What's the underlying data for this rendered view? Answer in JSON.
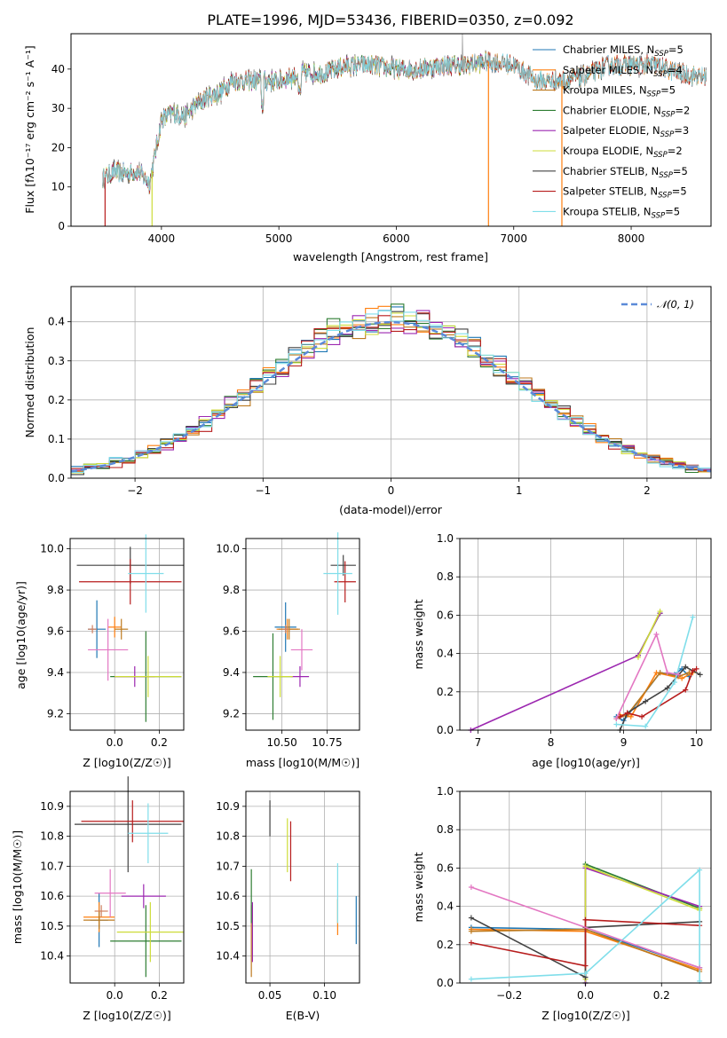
{
  "page": {
    "title": "PLATE=1996, MJD=53436, FIBERID=0350, z=0.092"
  },
  "models": [
    {
      "name": "Chabrier MILES, N",
      "sub": "SSP",
      "n": "=5",
      "color": "#1f77b4"
    },
    {
      "name": "Salpeter MILES, N",
      "sub": "SSP",
      "n": "=4",
      "color": "#ff7f0e"
    },
    {
      "name": "Kroupa MILES, N",
      "sub": "SSP",
      "n": "=5",
      "color": "#bd7a1f"
    },
    {
      "name": "Chabrier ELODIE, N",
      "sub": "SSP",
      "n": "=2",
      "color": "#2e7d32"
    },
    {
      "name": "Salpeter ELODIE, N",
      "sub": "SSP",
      "n": "=3",
      "color": "#9c27b0"
    },
    {
      "name": "Kroupa ELODIE, N",
      "sub": "SSP",
      "n": "=2",
      "color": "#cddc39"
    },
    {
      "name": "Chabrier STELIB, N",
      "sub": "SSP",
      "n": "=5",
      "color": "#424242"
    },
    {
      "name": "Salpeter STELIB, N",
      "sub": "SSP",
      "n": "=5",
      "color": "#b71c1c"
    },
    {
      "name": "Kroupa STELIB, N",
      "sub": "SSP",
      "n": "=5",
      "color": "#80deea"
    }
  ],
  "chart_data": [
    {
      "id": "spectrum",
      "type": "line",
      "xlabel": "wavelength [Angstrom, rest frame]",
      "ylabel": "Flux [fλ10⁻¹⁷ erg cm⁻² s⁻¹ A⁻¹]",
      "xlim": [
        3230,
        8680
      ],
      "ylim": [
        0,
        49
      ],
      "xticks": [
        4000,
        5000,
        6000,
        7000,
        8000
      ],
      "yticks": [
        0,
        10,
        20,
        30,
        40
      ],
      "grid": false,
      "legend": "top-right",
      "continuum": {
        "x": [
          3500,
          3600,
          3700,
          3800,
          3900,
          3950,
          4000,
          4100,
          4200,
          4300,
          4400,
          4500,
          4600,
          4800,
          5000,
          5200,
          5400,
          5600,
          5800,
          6000,
          6200,
          6400,
          6600,
          6800,
          7000,
          7200,
          7400,
          7600,
          7800,
          8000,
          8200,
          8400,
          8600
        ],
        "y": [
          12,
          14,
          13.5,
          14,
          11,
          19,
          27,
          29,
          28,
          31,
          33,
          34,
          37,
          37,
          37,
          39,
          39,
          41,
          41,
          40,
          40,
          41,
          41,
          42,
          41,
          37,
          37,
          38,
          41,
          41,
          41,
          39,
          38
        ]
      }
    },
    {
      "id": "residuals",
      "type": "line",
      "xlabel": "(data-model)/error",
      "ylabel": "Normed distribution",
      "xlim": [
        -2.5,
        2.5
      ],
      "ylim": [
        0,
        0.49
      ],
      "xticks": [
        -2,
        -1,
        0,
        1,
        2
      ],
      "yticks": [
        0.0,
        0.1,
        0.2,
        0.3,
        0.4
      ],
      "grid": true,
      "legend": "top-right",
      "legend_label": "𝒩(0, 1)"
    },
    {
      "id": "age-vs-z",
      "type": "scatter",
      "xlabel": "Z [log10(Z/Z☉)]",
      "ylabel": "age  [log10(age/yr)]",
      "xlim": [
        -0.2,
        0.31
      ],
      "ylim": [
        9.12,
        10.05
      ],
      "xticks": [
        0.0,
        0.2
      ],
      "yticks": [
        9.2,
        9.4,
        9.6,
        9.8,
        10.0
      ],
      "grid": true,
      "points": [
        {
          "x": -0.08,
          "xerr": 0.04,
          "y": 9.61,
          "yerr": 0.14
        },
        {
          "x": 0.0,
          "xerr": 0.03,
          "y": 9.62,
          "yerr": 0.05
        },
        {
          "x": 0.03,
          "xerr": 0.03,
          "y": 9.61,
          "yerr": 0.05
        },
        {
          "x": 0.14,
          "xerr": 0.16,
          "y": 9.38,
          "yerr": 0.22
        },
        {
          "x": 0.09,
          "xerr": 0.09,
          "y": 9.38,
          "yerr": 0.05
        },
        {
          "x": 0.15,
          "xerr": 0.15,
          "y": 9.38,
          "yerr": 0.1
        },
        {
          "x": 0.07,
          "xerr": 0.24,
          "y": 9.92,
          "yerr": 0.09
        },
        {
          "x": 0.07,
          "xerr": 0.23,
          "y": 9.84,
          "yerr": 0.11
        },
        {
          "x": 0.14,
          "xerr": 0.08,
          "y": 9.88,
          "yerr": 0.19
        },
        {
          "x": -0.03,
          "xerr": 0.09,
          "y": 9.51,
          "yerr": 0.15
        },
        {
          "x": -0.1,
          "xerr": 0.02,
          "y": 9.61,
          "yerr": 0.02
        }
      ]
    },
    {
      "id": "age-vs-mass",
      "type": "scatter",
      "xlabel": "mass [log10(M/M☉)]",
      "ylabel": "",
      "xlim": [
        10.3,
        10.93
      ],
      "ylim": [
        9.12,
        10.05
      ],
      "xticks": [
        10.5,
        10.75
      ],
      "yticks": [
        9.2,
        9.4,
        9.6,
        9.8,
        10.0
      ],
      "grid": true,
      "points": [
        {
          "x": 10.52,
          "xerr": 0.06,
          "y": 9.62,
          "yerr": 0.12
        },
        {
          "x": 10.53,
          "xerr": 0.06,
          "y": 9.61,
          "yerr": 0.05
        },
        {
          "x": 10.54,
          "xerr": 0.06,
          "y": 9.61,
          "yerr": 0.05
        },
        {
          "x": 10.45,
          "xerr": 0.11,
          "y": 9.38,
          "yerr": 0.21
        },
        {
          "x": 10.6,
          "xerr": 0.05,
          "y": 9.38,
          "yerr": 0.05
        },
        {
          "x": 10.49,
          "xerr": 0.07,
          "y": 9.38,
          "yerr": 0.1
        },
        {
          "x": 10.84,
          "xerr": 0.07,
          "y": 9.92,
          "yerr": 0.05
        },
        {
          "x": 10.85,
          "xerr": 0.06,
          "y": 9.84,
          "yerr": 0.1
        },
        {
          "x": 10.81,
          "xerr": 0.08,
          "y": 9.88,
          "yerr": 0.2
        },
        {
          "x": 10.61,
          "xerr": 0.06,
          "y": 9.51,
          "yerr": 0.1
        },
        {
          "x": 10.52,
          "xerr": 0.02,
          "y": 9.61,
          "yerr": 0.02
        }
      ]
    },
    {
      "id": "weight-vs-age",
      "type": "line",
      "xlabel": "age  [log10(age/yr)]",
      "ylabel": "mass weight",
      "xlim": [
        6.75,
        10.2
      ],
      "ylim": [
        0,
        1.0
      ],
      "xticks": [
        7,
        8,
        9,
        10
      ],
      "yticks": [
        0.0,
        0.2,
        0.4,
        0.6,
        0.8,
        1.0
      ],
      "grid": true,
      "series": [
        {
          "x": [
            8.9,
            9.0,
            9.5,
            9.7,
            9.8,
            9.9
          ],
          "y": [
            0.07,
            0.05,
            0.3,
            0.29,
            0.32,
            0.28
          ]
        },
        {
          "x": [
            8.95,
            9.1,
            9.45,
            9.8,
            9.95
          ],
          "y": [
            0.08,
            0.07,
            0.3,
            0.27,
            0.3
          ]
        },
        {
          "x": [
            8.9,
            9.05,
            9.5,
            9.75,
            9.9
          ],
          "y": [
            0.06,
            0.08,
            0.3,
            0.28,
            0.3
          ]
        },
        {
          "x": [
            9.2,
            9.5
          ],
          "y": [
            0.39,
            0.61
          ]
        },
        {
          "x": [
            6.9,
            9.2,
            9.5
          ],
          "y": [
            0.0,
            0.39,
            0.61
          ]
        },
        {
          "x": [
            9.2,
            9.5
          ],
          "y": [
            0.38,
            0.62
          ]
        },
        {
          "x": [
            8.95,
            9.05,
            9.3,
            9.6,
            9.85,
            10.05
          ],
          "y": [
            0.0,
            0.09,
            0.15,
            0.22,
            0.33,
            0.29
          ]
        },
        {
          "x": [
            8.95,
            9.05,
            9.25,
            9.85,
            9.95,
            10.0
          ],
          "y": [
            0.07,
            0.09,
            0.07,
            0.21,
            0.31,
            0.32
          ]
        },
        {
          "x": [
            8.9,
            9.3,
            9.7,
            9.95
          ],
          "y": [
            0.03,
            0.02,
            0.25,
            0.59
          ]
        },
        {
          "x": [
            8.9,
            9.45,
            9.6,
            9.75
          ],
          "y": [
            0.06,
            0.5,
            0.3,
            0.29
          ]
        }
      ]
    },
    {
      "id": "mass-vs-z",
      "type": "scatter",
      "xlabel": "Z [log10(Z/Z☉)]",
      "ylabel": "mass [log10(M/M☉)]",
      "xlim": [
        -0.2,
        0.31
      ],
      "ylim": [
        10.31,
        10.95
      ],
      "xticks": [
        0.0,
        0.2
      ],
      "yticks": [
        10.4,
        10.5,
        10.6,
        10.7,
        10.8,
        10.9
      ],
      "grid": true,
      "points": [
        {
          "x": -0.07,
          "xerr": 0.04,
          "y": 10.52,
          "yerr": 0.09
        },
        {
          "x": -0.07,
          "xerr": 0.07,
          "y": 10.53,
          "yerr": 0.05
        },
        {
          "x": -0.07,
          "xerr": 0.07,
          "y": 10.52,
          "yerr": 0.03
        },
        {
          "x": 0.14,
          "xerr": 0.16,
          "y": 10.45,
          "yerr": 0.12
        },
        {
          "x": 0.13,
          "xerr": 0.1,
          "y": 10.6,
          "yerr": 0.04
        },
        {
          "x": 0.16,
          "xerr": 0.15,
          "y": 10.48,
          "yerr": 0.1
        },
        {
          "x": 0.06,
          "xerr": 0.24,
          "y": 10.84,
          "yerr": 0.16
        },
        {
          "x": 0.08,
          "xerr": 0.23,
          "y": 10.85,
          "yerr": 0.07
        },
        {
          "x": 0.15,
          "xerr": 0.09,
          "y": 10.81,
          "yerr": 0.1
        },
        {
          "x": -0.02,
          "xerr": 0.07,
          "y": 10.61,
          "yerr": 0.08
        },
        {
          "x": -0.06,
          "xerr": 0.03,
          "y": 10.55,
          "yerr": 0.02
        }
      ]
    },
    {
      "id": "mass-vs-ebv",
      "type": "scatter",
      "xlabel": "E(B-V)",
      "ylabel": "",
      "xlim": [
        0.028,
        0.132
      ],
      "ylim": [
        10.31,
        10.95
      ],
      "xticks": [
        0.05,
        0.1
      ],
      "yticks": [
        10.4,
        10.5,
        10.6,
        10.7,
        10.8,
        10.9
      ],
      "grid": true,
      "points": [
        {
          "x": 0.129,
          "y": 10.52,
          "yerr": 0.08
        },
        {
          "x": 0.112,
          "y": 10.53,
          "yerr": 0.06
        },
        {
          "x": 0.033,
          "y": 10.45,
          "yerr": 0.12
        },
        {
          "x": 0.033,
          "y": 10.6,
          "yerr": 0.09
        },
        {
          "x": 0.034,
          "y": 10.48,
          "yerr": 0.1
        },
        {
          "x": 0.066,
          "y": 10.77,
          "yerr": 0.09
        },
        {
          "x": 0.05,
          "y": 10.86,
          "yerr": 0.06
        },
        {
          "x": 0.069,
          "y": 10.75,
          "yerr": 0.1
        },
        {
          "x": 0.112,
          "y": 10.61,
          "yerr": 0.1
        }
      ]
    },
    {
      "id": "weight-vs-z",
      "type": "line",
      "xlabel": "Z [log10(Z/Z☉)]",
      "ylabel": "mass weight",
      "xlim": [
        -0.33,
        0.33
      ],
      "ylim": [
        0,
        1.0
      ],
      "xticks": [
        -0.2,
        0.0,
        0.2
      ],
      "yticks": [
        0.0,
        0.2,
        0.4,
        0.6,
        0.8,
        1.0
      ],
      "grid": true,
      "series": [
        {
          "x": [
            -0.3,
            0.0,
            0.3
          ],
          "y": [
            0.29,
            0.28,
            0.08
          ]
        },
        {
          "x": [
            -0.3,
            0.0,
            0.3
          ],
          "y": [
            0.28,
            0.27,
            0.07
          ]
        },
        {
          "x": [
            -0.3,
            0.0,
            0.3
          ],
          "y": [
            0.27,
            0.28,
            0.06
          ]
        },
        {
          "x": [
            0.0,
            0.0,
            0.3
          ],
          "y": [
            0.0,
            0.62,
            0.39
          ]
        },
        {
          "x": [
            0.0,
            0.0,
            0.3
          ],
          "y": [
            0.0,
            0.6,
            0.4
          ]
        },
        {
          "x": [
            0.0,
            0.0,
            0.3,
            0.3
          ],
          "y": [
            0.02,
            0.61,
            0.38,
            0.39
          ]
        },
        {
          "x": [
            -0.3,
            0.0,
            0.0,
            0.3
          ],
          "y": [
            0.34,
            0.03,
            0.29,
            0.32
          ]
        },
        {
          "x": [
            -0.3,
            0.0,
            0.0,
            0.3
          ],
          "y": [
            0.21,
            0.09,
            0.33,
            0.3
          ]
        },
        {
          "x": [
            -0.3,
            0.0,
            0.3,
            0.3
          ],
          "y": [
            0.02,
            0.05,
            0.59,
            0.01
          ]
        },
        {
          "x": [
            -0.3,
            0.3
          ],
          "y": [
            0.5,
            0.08
          ]
        }
      ]
    }
  ]
}
